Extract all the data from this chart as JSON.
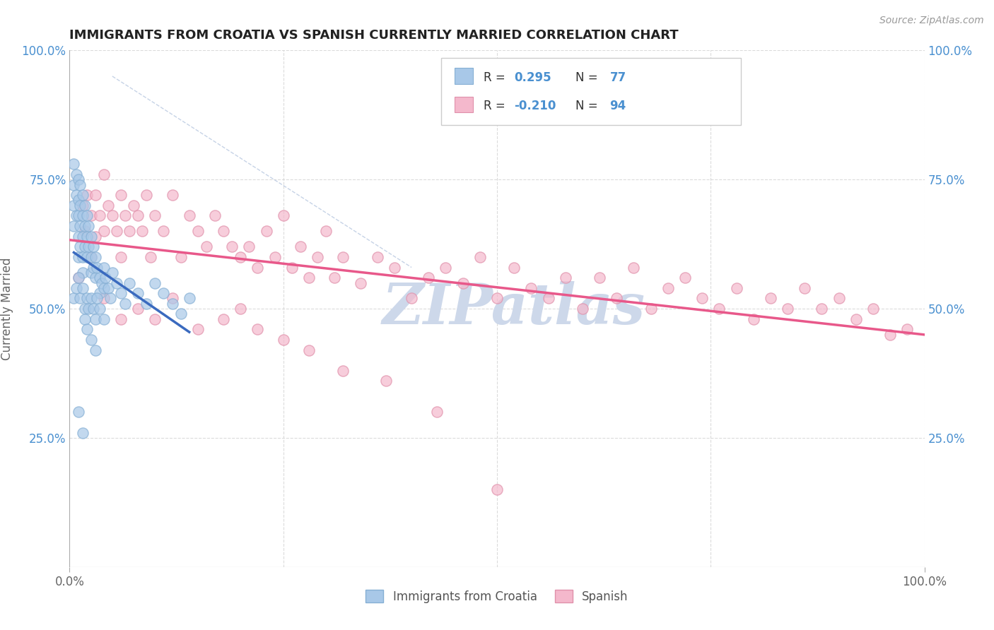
{
  "title": "IMMIGRANTS FROM CROATIA VS SPANISH CURRENTLY MARRIED CORRELATION CHART",
  "source_text": "Source: ZipAtlas.com",
  "ylabel": "Currently Married",
  "xlim": [
    0.0,
    1.0
  ],
  "ylim": [
    0.0,
    1.0
  ],
  "legend_entries": [
    "Immigrants from Croatia",
    "Spanish"
  ],
  "r_croatia": 0.295,
  "n_croatia": 77,
  "r_spanish": -0.21,
  "n_spanish": 94,
  "background_color": "#ffffff",
  "grid_color": "#cccccc",
  "croatia_color": "#a8c8e8",
  "croatia_edge_color": "#85afd4",
  "croatia_line_color": "#3a6abf",
  "spanish_color": "#f4b8cc",
  "spanish_edge_color": "#e090aa",
  "spanish_line_color": "#e8588a",
  "watermark_color": "#cdd8ea",
  "diag_color": "#b8c8e0",
  "tick_color": "#4a90d0",
  "axis_label_color": "#666666",
  "croatia_x": [
    0.005,
    0.005,
    0.005,
    0.005,
    0.008,
    0.008,
    0.008,
    0.01,
    0.01,
    0.01,
    0.01,
    0.01,
    0.012,
    0.012,
    0.012,
    0.012,
    0.015,
    0.015,
    0.015,
    0.015,
    0.015,
    0.018,
    0.018,
    0.018,
    0.02,
    0.02,
    0.02,
    0.022,
    0.022,
    0.025,
    0.025,
    0.025,
    0.028,
    0.028,
    0.03,
    0.03,
    0.032,
    0.035,
    0.035,
    0.038,
    0.04,
    0.04,
    0.042,
    0.045,
    0.048,
    0.05,
    0.055,
    0.06,
    0.065,
    0.07,
    0.08,
    0.09,
    0.1,
    0.11,
    0.12,
    0.13,
    0.14,
    0.005,
    0.008,
    0.01,
    0.012,
    0.015,
    0.018,
    0.02,
    0.022,
    0.025,
    0.028,
    0.03,
    0.032,
    0.035,
    0.04,
    0.01,
    0.015,
    0.018,
    0.02,
    0.025,
    0.03
  ],
  "croatia_y": [
    0.78,
    0.74,
    0.7,
    0.66,
    0.76,
    0.72,
    0.68,
    0.75,
    0.71,
    0.68,
    0.64,
    0.6,
    0.74,
    0.7,
    0.66,
    0.62,
    0.72,
    0.68,
    0.64,
    0.6,
    0.57,
    0.7,
    0.66,
    0.62,
    0.68,
    0.64,
    0.6,
    0.66,
    0.62,
    0.64,
    0.6,
    0.57,
    0.62,
    0.58,
    0.6,
    0.56,
    0.58,
    0.56,
    0.53,
    0.55,
    0.58,
    0.54,
    0.56,
    0.54,
    0.52,
    0.57,
    0.55,
    0.53,
    0.51,
    0.55,
    0.53,
    0.51,
    0.55,
    0.53,
    0.51,
    0.49,
    0.52,
    0.52,
    0.54,
    0.56,
    0.52,
    0.54,
    0.5,
    0.52,
    0.5,
    0.52,
    0.5,
    0.48,
    0.52,
    0.5,
    0.48,
    0.3,
    0.26,
    0.48,
    0.46,
    0.44,
    0.42
  ],
  "spanish_x": [
    0.01,
    0.015,
    0.018,
    0.02,
    0.025,
    0.025,
    0.03,
    0.03,
    0.035,
    0.04,
    0.04,
    0.045,
    0.05,
    0.055,
    0.06,
    0.06,
    0.065,
    0.07,
    0.075,
    0.08,
    0.085,
    0.09,
    0.095,
    0.1,
    0.11,
    0.12,
    0.13,
    0.14,
    0.15,
    0.16,
    0.17,
    0.18,
    0.19,
    0.2,
    0.21,
    0.22,
    0.23,
    0.24,
    0.25,
    0.26,
    0.27,
    0.28,
    0.29,
    0.3,
    0.31,
    0.32,
    0.34,
    0.36,
    0.38,
    0.4,
    0.42,
    0.44,
    0.46,
    0.48,
    0.5,
    0.52,
    0.54,
    0.56,
    0.58,
    0.6,
    0.62,
    0.64,
    0.66,
    0.68,
    0.7,
    0.72,
    0.74,
    0.76,
    0.78,
    0.8,
    0.82,
    0.84,
    0.86,
    0.88,
    0.9,
    0.92,
    0.94,
    0.96,
    0.98,
    0.04,
    0.06,
    0.08,
    0.1,
    0.12,
    0.15,
    0.18,
    0.2,
    0.22,
    0.25,
    0.28,
    0.32,
    0.37,
    0.43,
    0.5
  ],
  "spanish_y": [
    0.56,
    0.7,
    0.65,
    0.72,
    0.68,
    0.6,
    0.72,
    0.64,
    0.68,
    0.76,
    0.65,
    0.7,
    0.68,
    0.65,
    0.72,
    0.6,
    0.68,
    0.65,
    0.7,
    0.68,
    0.65,
    0.72,
    0.6,
    0.68,
    0.65,
    0.72,
    0.6,
    0.68,
    0.65,
    0.62,
    0.68,
    0.65,
    0.62,
    0.6,
    0.62,
    0.58,
    0.65,
    0.6,
    0.68,
    0.58,
    0.62,
    0.56,
    0.6,
    0.65,
    0.56,
    0.6,
    0.55,
    0.6,
    0.58,
    0.52,
    0.56,
    0.58,
    0.55,
    0.6,
    0.52,
    0.58,
    0.54,
    0.52,
    0.56,
    0.5,
    0.56,
    0.52,
    0.58,
    0.5,
    0.54,
    0.56,
    0.52,
    0.5,
    0.54,
    0.48,
    0.52,
    0.5,
    0.54,
    0.5,
    0.52,
    0.48,
    0.5,
    0.45,
    0.46,
    0.52,
    0.48,
    0.5,
    0.48,
    0.52,
    0.46,
    0.48,
    0.5,
    0.46,
    0.44,
    0.42,
    0.38,
    0.36,
    0.3,
    0.15
  ]
}
